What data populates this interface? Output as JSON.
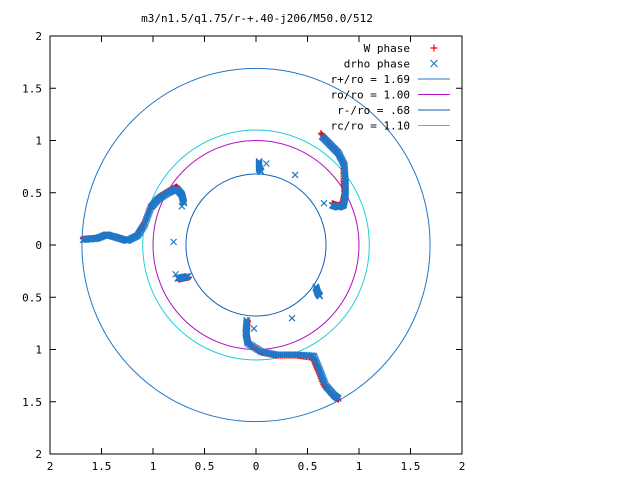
{
  "chart_data": {
    "type": "scatter",
    "title": "m3/n1.5/q1.75/r-+.40-j206/M50.0/512",
    "xlim": [
      -2,
      2
    ],
    "ylim": [
      -2,
      2
    ],
    "x_ticks": [
      -2,
      -1.5,
      -1,
      -0.5,
      0,
      0.5,
      1,
      1.5,
      2
    ],
    "y_ticks": [
      -2,
      -1.5,
      -1,
      -0.5,
      0,
      0.5,
      1,
      1.5,
      2
    ],
    "x_tick_labels": [
      "2",
      "1.5",
      "1",
      "0.5",
      "0",
      "0.5",
      "1",
      "1.5",
      "2"
    ],
    "y_tick_labels": [
      "2",
      "1.5",
      "1",
      "0.5",
      "0",
      "0.5",
      "1",
      "1.5",
      "2"
    ],
    "legend_position": "top-right",
    "grid": false,
    "series": [
      {
        "name": "W phase",
        "marker": "plus",
        "color": "#ff0000",
        "curves": [
          [
            [
              -1.68,
              0.06
            ],
            [
              -1.55,
              0.07
            ],
            [
              -1.45,
              0.1
            ],
            [
              -1.35,
              0.08
            ],
            [
              -1.25,
              0.05
            ],
            [
              -1.15,
              0.1
            ],
            [
              -1.08,
              0.22
            ],
            [
              -1.02,
              0.38
            ],
            [
              -0.95,
              0.46
            ],
            [
              -0.85,
              0.52
            ],
            [
              -0.77,
              0.56
            ],
            [
              -0.72,
              0.5
            ],
            [
              -0.7,
              0.42
            ]
          ],
          [
            [
              0.63,
              1.07
            ],
            [
              0.7,
              0.98
            ],
            [
              0.78,
              0.9
            ],
            [
              0.85,
              0.78
            ],
            [
              0.85,
              0.62
            ],
            [
              0.86,
              0.5
            ],
            [
              0.84,
              0.4
            ],
            [
              0.8,
              0.38
            ],
            [
              0.74,
              0.4
            ]
          ],
          [
            [
              -0.08,
              -0.72
            ],
            [
              -0.09,
              -0.85
            ],
            [
              -0.07,
              -0.95
            ],
            [
              0.05,
              -1.03
            ],
            [
              0.2,
              -1.06
            ],
            [
              0.4,
              -1.06
            ],
            [
              0.55,
              -1.08
            ],
            [
              0.6,
              -1.2
            ],
            [
              0.66,
              -1.35
            ],
            [
              0.75,
              -1.44
            ],
            [
              0.8,
              -1.48
            ]
          ],
          [
            [
              -0.75,
              -0.33
            ],
            [
              -0.7,
              -0.32
            ],
            [
              -0.65,
              -0.31
            ]
          ]
        ]
      },
      {
        "name": "drho phase",
        "marker": "cross",
        "color": "#1f78c8",
        "curves": [
          [
            [
              -1.68,
              0.05
            ],
            [
              -1.55,
              0.06
            ],
            [
              -1.45,
              0.1
            ],
            [
              -1.35,
              0.07
            ],
            [
              -1.25,
              0.04
            ],
            [
              -1.15,
              0.09
            ],
            [
              -1.08,
              0.2
            ],
            [
              -1.02,
              0.36
            ],
            [
              -0.95,
              0.44
            ],
            [
              -0.85,
              0.5
            ],
            [
              -0.77,
              0.54
            ],
            [
              -0.72,
              0.48
            ],
            [
              -0.7,
              0.4
            ]
          ],
          [
            [
              0.64,
              1.04
            ],
            [
              0.72,
              0.96
            ],
            [
              0.8,
              0.88
            ],
            [
              0.86,
              0.76
            ],
            [
              0.87,
              0.6
            ],
            [
              0.87,
              0.48
            ],
            [
              0.85,
              0.38
            ],
            [
              0.8,
              0.36
            ],
            [
              0.74,
              0.38
            ]
          ],
          [
            [
              -0.09,
              -0.72
            ],
            [
              -0.1,
              -0.84
            ],
            [
              -0.08,
              -0.94
            ],
            [
              0.05,
              -1.02
            ],
            [
              0.2,
              -1.05
            ],
            [
              0.4,
              -1.05
            ],
            [
              0.56,
              -1.06
            ],
            [
              0.62,
              -1.2
            ],
            [
              0.68,
              -1.35
            ],
            [
              0.76,
              -1.44
            ],
            [
              0.8,
              -1.47
            ]
          ],
          [
            [
              -0.76,
              -0.32
            ],
            [
              -0.71,
              -0.31
            ],
            [
              -0.66,
              -0.3
            ]
          ],
          [
            [
              0.03,
              0.8
            ],
            [
              0.03,
              0.73
            ],
            [
              0.05,
              0.7
            ]
          ],
          [
            [
              0.58,
              -0.4
            ],
            [
              0.6,
              -0.46
            ],
            [
              0.62,
              -0.49
            ]
          ]
        ],
        "points": [
          [
            -0.8,
            0.03
          ],
          [
            0.1,
            0.78
          ],
          [
            0.38,
            0.67
          ],
          [
            0.66,
            0.4
          ],
          [
            -0.78,
            -0.28
          ],
          [
            -0.72,
            0.37
          ],
          [
            -0.02,
            -0.8
          ],
          [
            0.35,
            -0.7
          ]
        ]
      }
    ],
    "circles": [
      {
        "name": "r+/ro = 1.69",
        "radius": 1.69,
        "color": "#1f78c8"
      },
      {
        "name": "ro/ro = 1.00",
        "radius": 1.0,
        "color": "#b010c0"
      },
      {
        "name": "r-/ro = .68",
        "radius": 0.68,
        "color": "#1060b8"
      },
      {
        "name": "rc/ro = 1.10",
        "radius": 1.1,
        "color": "#20d0d8"
      }
    ]
  }
}
